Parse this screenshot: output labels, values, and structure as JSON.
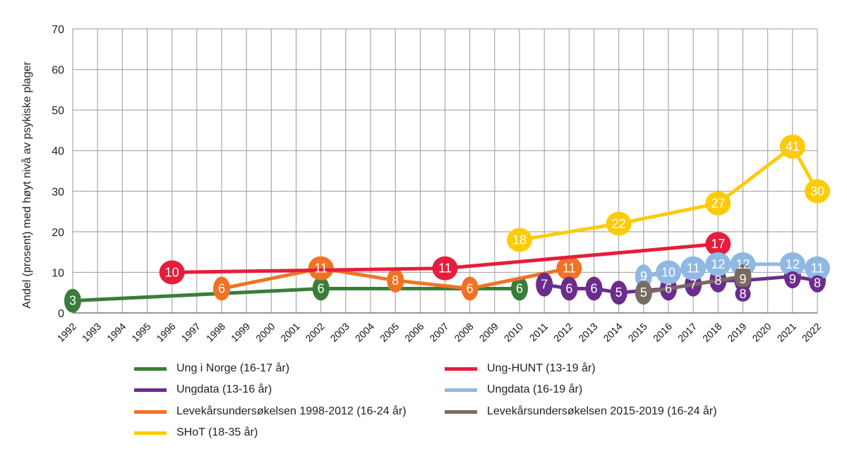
{
  "chart_data": {
    "type": "line",
    "ylabel": "Andel (prosent) med høyt nivå av psykiske plager",
    "xlabel": "",
    "ylim": [
      0,
      70
    ],
    "yticks": [
      0,
      10,
      20,
      30,
      40,
      50,
      60,
      70
    ],
    "categories": [
      "1992",
      "1993",
      "1994",
      "1995",
      "1996",
      "1997",
      "1998",
      "1999",
      "2000",
      "2001",
      "2002",
      "2003",
      "2004",
      "2005",
      "2006",
      "2007",
      "2008",
      "2009",
      "2010",
      "2011",
      "2012",
      "2013",
      "2014",
      "2015",
      "2016",
      "2017",
      "2018",
      "2019",
      "2020",
      "2021",
      "2022"
    ],
    "grid": true,
    "legend_placement": "bottom",
    "series": [
      {
        "name": "Ung i Norge (16-17 år)",
        "color": "#3a7d3a",
        "points": [
          [
            1992,
            3
          ],
          [
            2002,
            6
          ],
          [
            2010,
            6
          ]
        ]
      },
      {
        "name": "Ung-HUNT (13-19 år)",
        "color": "#e41e3c",
        "points": [
          [
            1996,
            10
          ],
          [
            2007,
            11
          ],
          [
            2018,
            17
          ]
        ]
      },
      {
        "name": "Ungdata (13-16 år)",
        "color": "#6b2d8d",
        "points": [
          [
            2011,
            7
          ],
          [
            2012,
            6
          ],
          [
            2013,
            6
          ],
          [
            2014,
            5
          ],
          [
            2016,
            6
          ],
          [
            2017,
            7
          ],
          [
            2018,
            8
          ],
          [
            2019,
            8
          ],
          [
            2021,
            9
          ],
          [
            2022,
            8
          ]
        ]
      },
      {
        "name": "Ungdata (16-19 år)",
        "color": "#8fb9e2",
        "points": [
          [
            2015,
            9
          ],
          [
            2016,
            10
          ],
          [
            2017,
            11
          ],
          [
            2018,
            12
          ],
          [
            2019,
            12
          ],
          [
            2021,
            12
          ],
          [
            2022,
            11
          ]
        ]
      },
      {
        "name": "Levekårsundersøkelsen 1998-2012 (16-24 år)",
        "color": "#f07225",
        "points": [
          [
            1998,
            6
          ],
          [
            2002,
            11
          ],
          [
            2005,
            8
          ],
          [
            2008,
            6
          ],
          [
            2012,
            11
          ]
        ]
      },
      {
        "name": "Levekårsundersøkelsen 2015-2019 (16-24 år)",
        "color": "#786b62",
        "points": [
          [
            2015,
            5
          ],
          [
            2019,
            9
          ]
        ]
      },
      {
        "name": "SHoT (18-35 år)",
        "color": "#fecb0b",
        "points": [
          [
            2010,
            18
          ],
          [
            2014,
            22
          ],
          [
            2018,
            27
          ],
          [
            2021,
            41
          ],
          [
            2022,
            30
          ]
        ]
      }
    ]
  }
}
